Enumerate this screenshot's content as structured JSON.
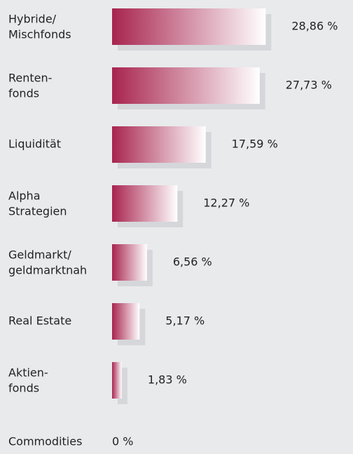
{
  "chart_data": {
    "type": "bar",
    "orientation": "horizontal",
    "color": "#a8244f",
    "categories": [
      [
        "Hybride/",
        "Mischfonds"
      ],
      [
        "Renten-",
        "fonds"
      ],
      [
        "Liquidität"
      ],
      [
        "Alpha",
        "Strategien"
      ],
      [
        "Geldmarkt/",
        "geldmarktnah"
      ],
      [
        "Real Estate"
      ],
      [
        "Aktien-",
        "fonds"
      ],
      [
        "Commodities"
      ]
    ],
    "values": [
      28.86,
      27.73,
      17.59,
      12.27,
      6.56,
      5.17,
      1.83,
      0
    ],
    "value_labels": [
      "28,86 %",
      "27,73 %",
      "17,59 %",
      "12,27 %",
      "6,56 %",
      "5,17 %",
      "1,83 %",
      "0 %"
    ]
  }
}
